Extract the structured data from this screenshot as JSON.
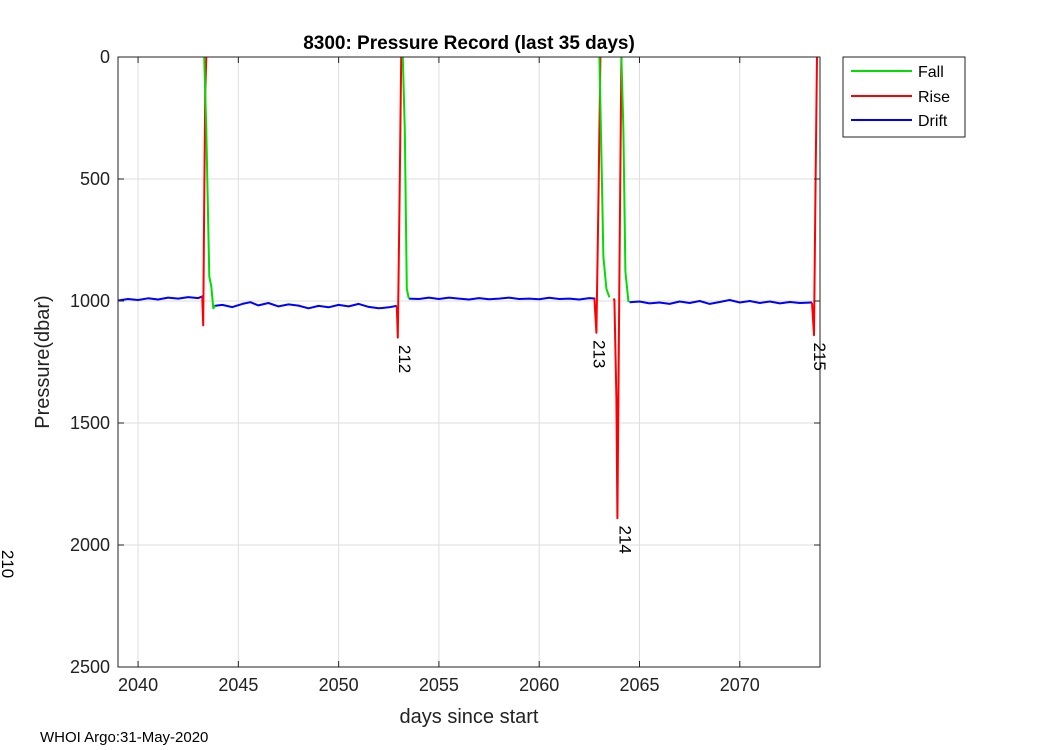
{
  "chart_data": {
    "type": "line",
    "title": "8300: Pressure Record (last 35 days)",
    "xlabel": "days since start",
    "ylabel": "Pressure(dbar)",
    "xlim": [
      2039,
      2074
    ],
    "ylim": [
      0,
      2500
    ],
    "y_reversed": true,
    "grid": true,
    "xticks": [
      2040,
      2045,
      2050,
      2055,
      2060,
      2065,
      2070
    ],
    "yticks": [
      0,
      500,
      1000,
      1500,
      2000,
      2500
    ],
    "legend_position": "outside-top-right",
    "legend": [
      "Fall",
      "Rise",
      "Drift"
    ],
    "series": [
      {
        "name": "Drift",
        "color": "#0000ff",
        "segments": [
          [
            [
              2039,
              998
            ],
            [
              2039.5,
              992
            ],
            [
              2040,
              996
            ],
            [
              2040.5,
              989
            ],
            [
              2041,
              994
            ],
            [
              2041.5,
              986
            ],
            [
              2042,
              990
            ],
            [
              2042.5,
              984
            ],
            [
              2043,
              988
            ],
            [
              2043.25,
              980
            ]
          ],
          [
            [
              2043.8,
              1020
            ],
            [
              2044.2,
              1016
            ],
            [
              2044.7,
              1025
            ],
            [
              2045.2,
              1012
            ],
            [
              2045.6,
              1005
            ],
            [
              2046,
              1018
            ],
            [
              2046.5,
              1008
            ],
            [
              2047,
              1022
            ],
            [
              2047.5,
              1014
            ],
            [
              2048,
              1019
            ],
            [
              2048.5,
              1030
            ],
            [
              2049,
              1020
            ],
            [
              2049.5,
              1026
            ],
            [
              2050,
              1016
            ],
            [
              2050.5,
              1022
            ],
            [
              2051,
              1012
            ],
            [
              2051.5,
              1024
            ],
            [
              2052,
              1030
            ],
            [
              2052.5,
              1026
            ],
            [
              2052.9,
              1020
            ]
          ],
          [
            [
              2053.5,
              990
            ],
            [
              2054,
              992
            ],
            [
              2054.5,
              986
            ],
            [
              2055,
              992
            ],
            [
              2055.5,
              986
            ],
            [
              2056,
              990
            ],
            [
              2056.5,
              994
            ],
            [
              2057,
              988
            ],
            [
              2057.5,
              993
            ],
            [
              2058,
              990
            ],
            [
              2058.5,
              986
            ],
            [
              2059,
              992
            ],
            [
              2059.5,
              990
            ],
            [
              2060,
              993
            ],
            [
              2060.5,
              987
            ],
            [
              2061,
              992
            ],
            [
              2061.5,
              990
            ],
            [
              2062,
              994
            ],
            [
              2062.5,
              988
            ],
            [
              2062.8,
              990
            ]
          ],
          [
            [
              2064.5,
              1005
            ],
            [
              2065,
              1002
            ],
            [
              2065.5,
              1010
            ],
            [
              2066,
              1006
            ],
            [
              2066.5,
              1012
            ],
            [
              2067,
              1002
            ],
            [
              2067.5,
              1008
            ],
            [
              2068,
              1000
            ],
            [
              2068.5,
              1012
            ],
            [
              2069,
              1004
            ],
            [
              2069.5,
              996
            ],
            [
              2070,
              1006
            ],
            [
              2070.5,
              1000
            ],
            [
              2071,
              1008
            ],
            [
              2071.5,
              1002
            ],
            [
              2072,
              1010
            ],
            [
              2072.5,
              1004
            ],
            [
              2073,
              1008
            ],
            [
              2073.6,
              1006
            ]
          ]
        ]
      },
      {
        "name": "Rise",
        "color": "#ff0000",
        "segments": [
          [
            [
              2043.2,
              980
            ],
            [
              2043.25,
              1100
            ],
            [
              2043.3,
              600
            ],
            [
              2043.35,
              150
            ],
            [
              2043.4,
              0
            ]
          ],
          [
            [
              2052.9,
              1020
            ],
            [
              2052.95,
              1150
            ],
            [
              2053.05,
              500
            ],
            [
              2053.12,
              0
            ]
          ],
          [
            [
              2062.75,
              990
            ],
            [
              2062.85,
              1130
            ],
            [
              2062.95,
              600
            ],
            [
              2063.05,
              0
            ]
          ],
          [
            [
              2063.7,
              990
            ],
            [
              2063.75,
              995
            ],
            [
              2063.85,
              1400
            ],
            [
              2063.9,
              1890
            ],
            [
              2064,
              900
            ],
            [
              2064.1,
              0
            ]
          ],
          [
            [
              2073.6,
              1006
            ],
            [
              2073.7,
              1140
            ],
            [
              2073.78,
              500
            ],
            [
              2073.85,
              0
            ]
          ]
        ]
      },
      {
        "name": "Fall",
        "color": "#00dd00",
        "segments": [
          [
            [
              2043.3,
              0
            ],
            [
              2043.4,
              300
            ],
            [
              2043.55,
              900
            ],
            [
              2043.65,
              940
            ],
            [
              2043.75,
              1030
            ],
            [
              2043.85,
              1020
            ]
          ],
          [
            [
              2053.2,
              0
            ],
            [
              2053.3,
              300
            ],
            [
              2053.4,
              950
            ],
            [
              2053.5,
              990
            ]
          ],
          [
            [
              2063,
              0
            ],
            [
              2063.1,
              400
            ],
            [
              2063.2,
              820
            ],
            [
              2063.35,
              950
            ],
            [
              2063.5,
              985
            ]
          ],
          [
            [
              2064.1,
              0
            ],
            [
              2064.2,
              300
            ],
            [
              2064.3,
              880
            ],
            [
              2064.45,
              1005
            ]
          ]
        ]
      }
    ],
    "annotations": [
      {
        "text": "210",
        "x": 2008,
        "y": 2020,
        "rotate": 90
      },
      {
        "text": "212",
        "x": 2053,
        "y": 1180,
        "rotate": 90
      },
      {
        "text": "213",
        "x": 2062.7,
        "y": 1160,
        "rotate": 90
      },
      {
        "text": "214",
        "x": 2064,
        "y": 1920,
        "rotate": 90
      },
      {
        "text": "215",
        "x": 2073.7,
        "y": 1170,
        "rotate": 90
      }
    ]
  },
  "footer": {
    "text": "WHOI Argo:31-May-2020"
  }
}
